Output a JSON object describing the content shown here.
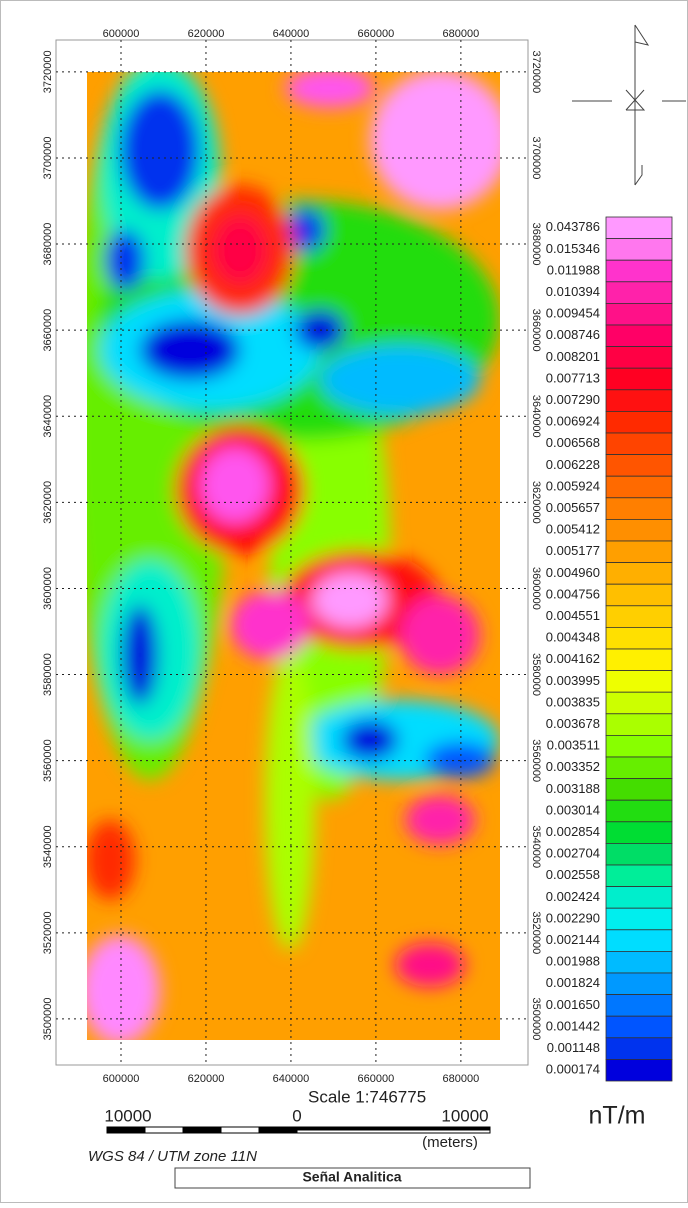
{
  "map": {
    "xlim": [
      584700,
      695800
    ],
    "ylim": [
      3489300,
      3727400
    ],
    "xticks": [
      600000,
      620000,
      640000,
      660000,
      680000
    ],
    "yticks": [
      3500000,
      3520000,
      3540000,
      3560000,
      3580000,
      3600000,
      3620000,
      3640000,
      3660000,
      3680000,
      3700000,
      3720000
    ],
    "grid": true
  },
  "legend": {
    "entries": [
      0.043786,
      0.015346,
      0.011988,
      0.010394,
      0.009454,
      0.008746,
      0.008201,
      0.007713,
      {
        "value": 0.00729,
        "label": "0.007290"
      },
      0.006924,
      0.006568,
      0.006228,
      0.005924,
      0.005657,
      0.005412,
      0.005177,
      {
        "value": 0.00496,
        "label": "0.004960"
      },
      0.004756,
      0.004551,
      0.004348,
      0.004162,
      0.003995,
      0.003835,
      0.003678,
      0.003511,
      0.003352,
      0.003188,
      0.003014,
      0.002854,
      0.002704,
      0.002558,
      0.002424,
      {
        "value": 0.00229,
        "label": "0.002290"
      },
      0.002144,
      0.001988,
      0.001824,
      {
        "value": 0.00165,
        "label": "0.001650"
      },
      0.001442,
      0.001148,
      0.000174
    ],
    "colors": [
      "#ff99ff",
      "#ff77ee",
      "#ff33cc",
      "#ff22aa",
      "#ff1188",
      "#ff0066",
      "#ff0044",
      "#ff0022",
      "#ff1111",
      "#ff2a00",
      "#ff4400",
      "#ff5500",
      "#ff6a00",
      "#ff7f00",
      "#ff8f00",
      "#ff9f00",
      "#ffaf00",
      "#ffbf00",
      "#ffcf00",
      "#ffe000",
      "#fff000",
      "#eeff00",
      "#ccff00",
      "#aaff00",
      "#88ff00",
      "#66ee00",
      "#44dd00",
      "#22dd11",
      "#00dd33",
      "#00dd66",
      "#00ee99",
      "#00eecc",
      "#00eeee",
      "#00ddff",
      "#00bbff",
      "#0099ff",
      "#0077ff",
      "#0055ff",
      "#0033ee",
      "#0000dd"
    ],
    "unit": "nT/m"
  },
  "scale": {
    "text": "Scale 1:746775",
    "labels": [
      "10000",
      "0",
      "10000"
    ],
    "units": "(meters)"
  },
  "projection": "WGS 84 / UTM zone 11N",
  "title": "Señal Analitica"
}
